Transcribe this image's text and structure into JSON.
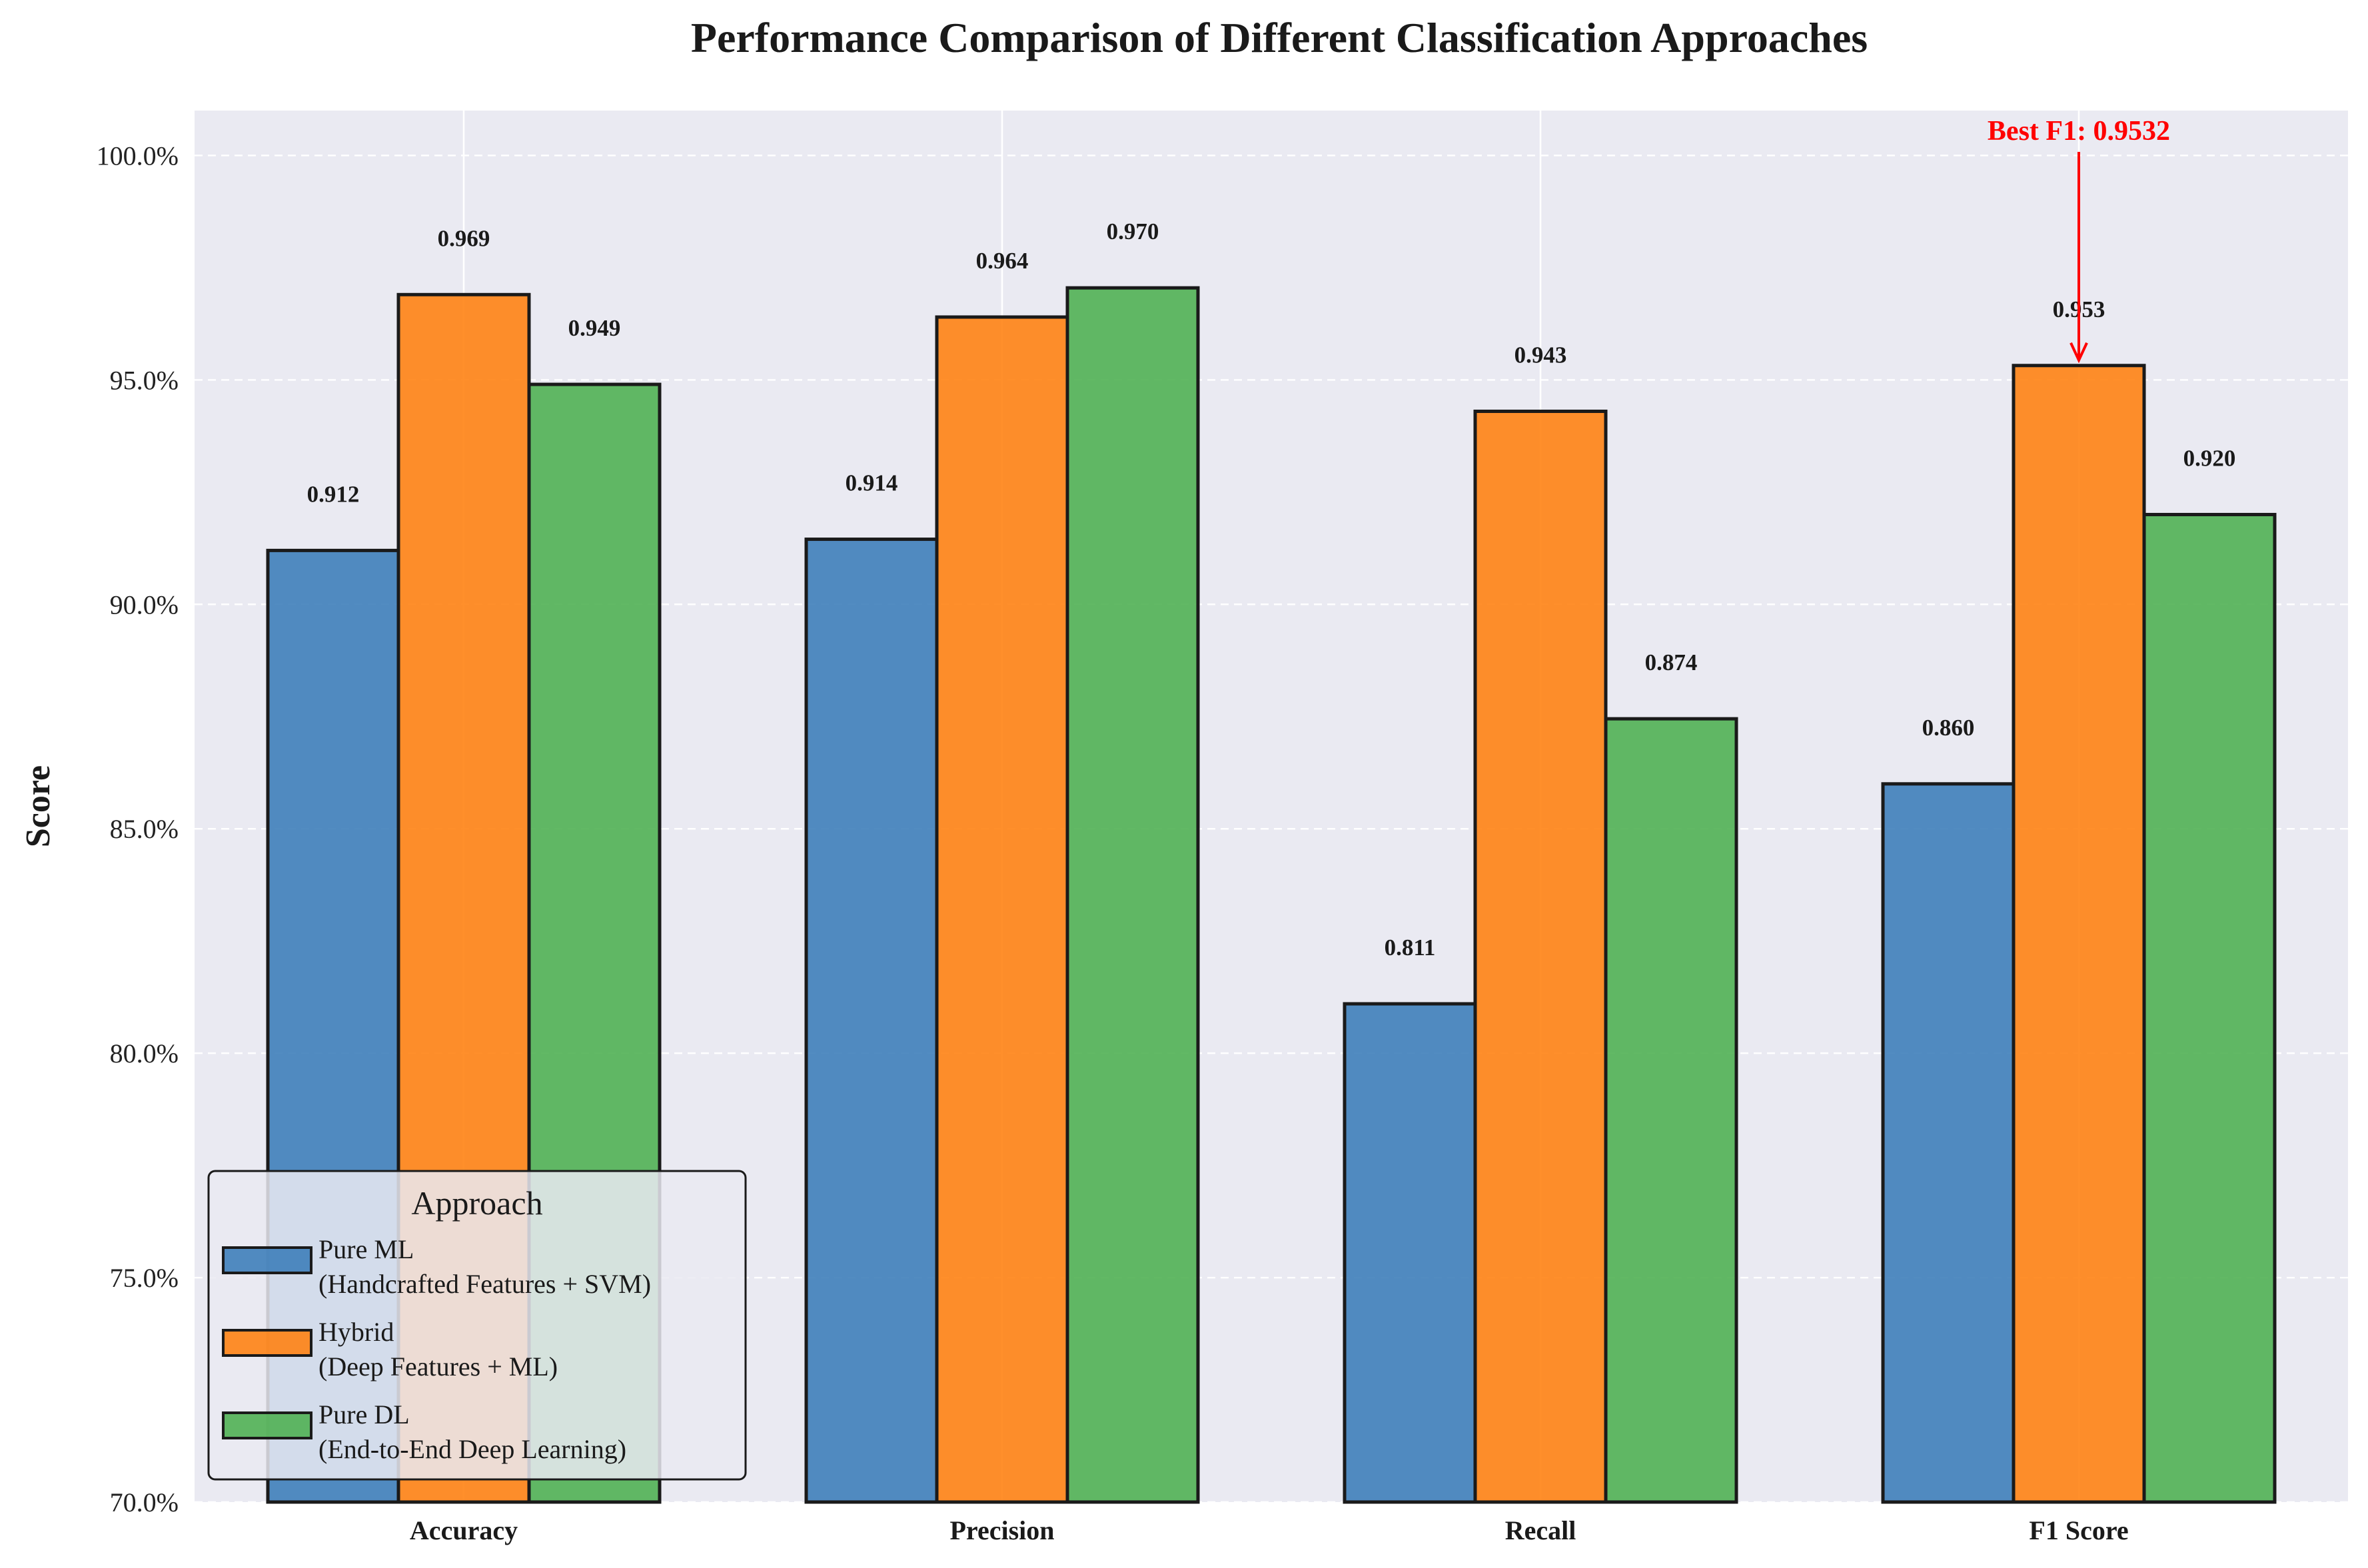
{
  "chart_data": {
    "type": "bar",
    "title": "Performance Comparison of Different Classification Approaches",
    "xlabel": "",
    "ylabel": "Score",
    "categories": [
      "Accuracy",
      "Precision",
      "Recall",
      "F1 Score"
    ],
    "ylim": [
      0.7,
      1.01
    ],
    "yticks": [
      0.7,
      0.75,
      0.8,
      0.85,
      0.9,
      0.95,
      1.0
    ],
    "ytick_labels": [
      "70.0%",
      "75.0%",
      "80.0%",
      "85.0%",
      "90.0%",
      "95.0%",
      "100.0%"
    ],
    "grid": true,
    "legend_placement": "lower-left",
    "legend_title": "Approach",
    "series": [
      {
        "name": "Pure ML\n(Handcrafted Features + SVM)",
        "color": "#3a7cb8",
        "values": [
          0.912,
          0.9145,
          0.811,
          0.86
        ],
        "labels": [
          "0.912",
          "0.914",
          "0.811",
          "0.860"
        ]
      },
      {
        "name": "Hybrid\n(Deep Features + ML)",
        "color": "#ff7f0e",
        "values": [
          0.969,
          0.964,
          0.943,
          0.9532
        ],
        "labels": [
          "0.969",
          "0.964",
          "0.943",
          "0.953"
        ]
      },
      {
        "name": "Pure DL\n(End-to-End Deep Learning)",
        "color": "#4caf50",
        "values": [
          0.949,
          0.9705,
          0.8745,
          0.92
        ],
        "labels": [
          "0.949",
          "0.970",
          "0.874",
          "0.920"
        ]
      }
    ],
    "annotation": {
      "text": "Best F1: 0.9532",
      "category": "F1 Score",
      "series_index": 1,
      "value": 0.9532,
      "color": "#ff0000"
    }
  }
}
